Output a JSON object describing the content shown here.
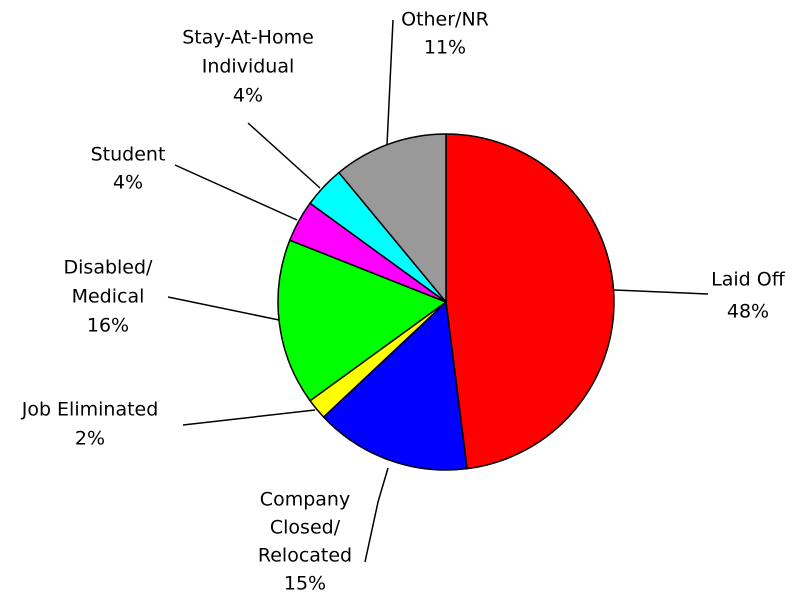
{
  "chart_data": {
    "type": "pie",
    "categories": [
      [
        "Laid Off"
      ],
      [
        "Company",
        "Closed/",
        "Relocated"
      ],
      [
        "Job Eliminated"
      ],
      [
        "Disabled/",
        "Medical"
      ],
      [
        "Student"
      ],
      [
        "Stay-At-Home",
        "Individual"
      ],
      [
        "Other/NR"
      ]
    ],
    "values": [
      48,
      15,
      2,
      16,
      4,
      4,
      11
    ],
    "value_labels": [
      "48%",
      "15%",
      "2%",
      "16%",
      "4%",
      "4%",
      "11%"
    ],
    "colors": [
      "#ff0000",
      "#0000ff",
      "#ffff00",
      "#00ff00",
      "#ff00ff",
      "#00ffff",
      "#999999"
    ]
  }
}
